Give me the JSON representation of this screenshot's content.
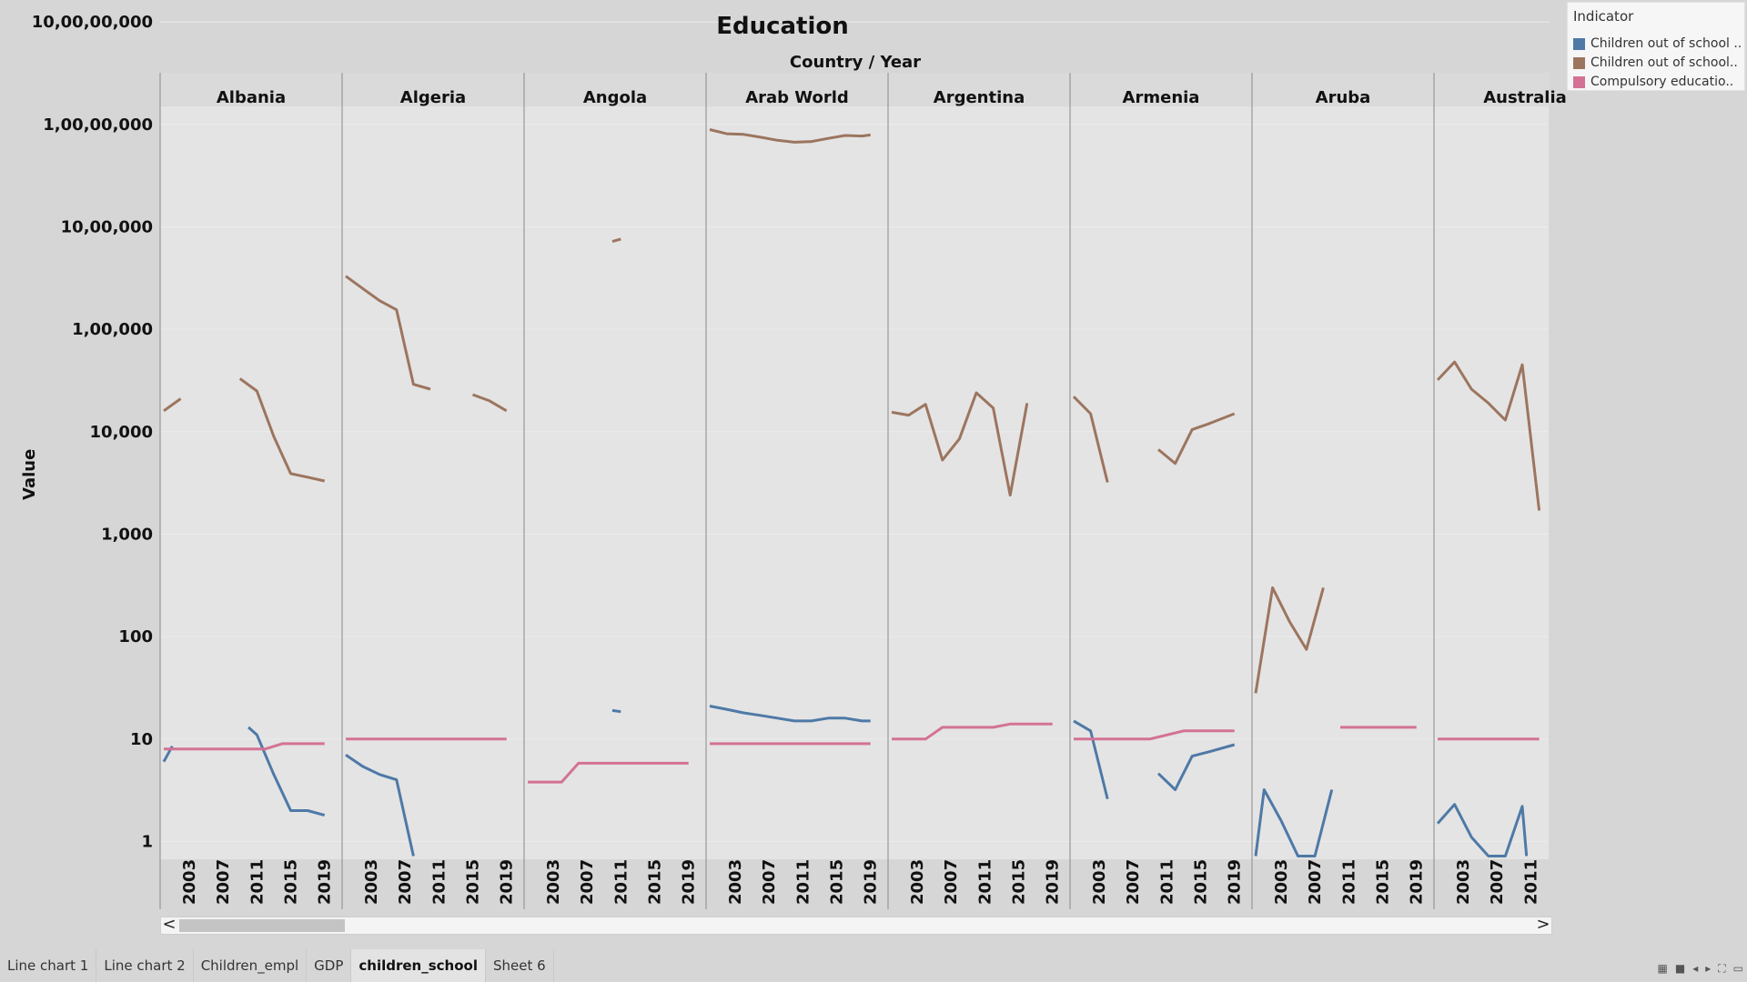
{
  "title": "Education",
  "subtitle": "Country / Year",
  "y_axis_label": "Value",
  "legend": {
    "title": "Indicator",
    "items": [
      {
        "label": "Children out of school ..",
        "color": "#4e79a7"
      },
      {
        "label": "Children out of school..",
        "color": "#9c755f"
      },
      {
        "label": "Compulsory educatio..",
        "color": "#d37295"
      }
    ]
  },
  "tabs": [
    "Line chart 1",
    "Line chart 2",
    "Children_empl",
    "GDP",
    "children_school",
    "Sheet 6"
  ],
  "active_tab": "children_school",
  "scroll": {
    "left": "<",
    "right": ">"
  },
  "chart_data": {
    "type": "line",
    "title": "Education",
    "xlabel": "Country / Year",
    "ylabel": "Value",
    "y_scale": "log",
    "ylim": [
      0.67,
      15000000
    ],
    "y_ticks": [
      1,
      10,
      100,
      1000,
      10000,
      100000,
      1000000,
      10000000,
      100000000
    ],
    "y_tick_labels": [
      "1",
      "10",
      "100",
      "1,000",
      "10,000",
      "1,00,000",
      "10,00,000",
      "1,00,00,000",
      "10,00,00,000"
    ],
    "x_ticks": [
      2003,
      2007,
      2011,
      2015,
      2019
    ],
    "x_range": [
      2000,
      2020
    ],
    "panels": [
      {
        "country": "Albania",
        "series": [
          {
            "indicator": 0,
            "segments": [
              [
                [
                  2000,
                  6
                ],
                [
                  2001,
                  8.5
                ]
              ],
              [
                [
                  2010,
                  13
                ],
                [
                  2011,
                  11
                ],
                [
                  2013,
                  4.5
                ],
                [
                  2015,
                  2
                ],
                [
                  2017,
                  2
                ],
                [
                  2019,
                  1.8
                ]
              ]
            ]
          },
          {
            "indicator": 1,
            "segments": [
              [
                [
                  2000,
                  16000
                ],
                [
                  2002,
                  21000
                ]
              ],
              [
                [
                  2009,
                  33000
                ],
                [
                  2011,
                  25000
                ],
                [
                  2013,
                  9000
                ],
                [
                  2015,
                  3900
                ],
                [
                  2017,
                  3600
                ],
                [
                  2019,
                  3300
                ]
              ]
            ]
          },
          {
            "indicator": 2,
            "segments": [
              [
                [
                  2000,
                  8
                ],
                [
                  2002,
                  8
                ],
                [
                  2004,
                  8
                ],
                [
                  2006,
                  8
                ],
                [
                  2008,
                  8
                ],
                [
                  2010,
                  8
                ],
                [
                  2012,
                  8
                ],
                [
                  2014,
                  9
                ],
                [
                  2016,
                  9
                ],
                [
                  2019,
                  9
                ]
              ]
            ]
          }
        ]
      },
      {
        "country": "Algeria",
        "series": [
          {
            "indicator": 0,
            "segments": [
              [
                [
                  2000,
                  7
                ],
                [
                  2002,
                  5.4
                ],
                [
                  2004,
                  4.5
                ],
                [
                  2006,
                  4
                ],
                [
                  2008,
                  0.72
                ]
              ]
            ]
          },
          {
            "indicator": 1,
            "segments": [
              [
                [
                  2000,
                  330000
                ],
                [
                  2002,
                  250000
                ],
                [
                  2004,
                  190000
                ],
                [
                  2006,
                  155000
                ],
                [
                  2008,
                  29000
                ],
                [
                  2010,
                  26000
                ]
              ],
              [
                [
                  2015,
                  23000
                ],
                [
                  2017,
                  20000
                ],
                [
                  2019,
                  16000
                ]
              ]
            ]
          },
          {
            "indicator": 2,
            "segments": [
              [
                [
                  2000,
                  10
                ],
                [
                  2019,
                  10
                ]
              ]
            ]
          }
        ]
      },
      {
        "country": "Angola",
        "series": [
          {
            "indicator": 0,
            "segments": [
              [
                [
                  2010,
                  19
                ],
                [
                  2011,
                  18.5
                ]
              ]
            ]
          },
          {
            "indicator": 1,
            "segments": [
              [
                [
                  2010,
                  720000
                ],
                [
                  2011,
                  760000
                ]
              ]
            ]
          },
          {
            "indicator": 2,
            "segments": [
              [
                [
                  2000,
                  3.8
                ],
                [
                  2004,
                  3.8
                ],
                [
                  2006,
                  5.8
                ],
                [
                  2019,
                  5.8
                ]
              ]
            ]
          }
        ]
      },
      {
        "country": "Arab World",
        "series": [
          {
            "indicator": 0,
            "segments": [
              [
                [
                  2000,
                  21
                ],
                [
                  2002,
                  19.5
                ],
                [
                  2004,
                  18
                ],
                [
                  2006,
                  17
                ],
                [
                  2008,
                  16
                ],
                [
                  2010,
                  15
                ],
                [
                  2012,
                  15
                ],
                [
                  2014,
                  16
                ],
                [
                  2016,
                  16
                ],
                [
                  2018,
                  15
                ],
                [
                  2019,
                  15
                ]
              ]
            ]
          },
          {
            "indicator": 1,
            "segments": [
              [
                [
                  2000,
                  8900000
                ],
                [
                  2002,
                  8100000
                ],
                [
                  2004,
                  8000000
                ],
                [
                  2006,
                  7500000
                ],
                [
                  2008,
                  7000000
                ],
                [
                  2010,
                  6700000
                ],
                [
                  2012,
                  6800000
                ],
                [
                  2014,
                  7300000
                ],
                [
                  2016,
                  7800000
                ],
                [
                  2018,
                  7700000
                ],
                [
                  2019,
                  7900000
                ]
              ]
            ]
          },
          {
            "indicator": 2,
            "segments": [
              [
                [
                  2000,
                  9
                ],
                [
                  2019,
                  9
                ]
              ]
            ]
          }
        ]
      },
      {
        "country": "Argentina",
        "series": [
          {
            "indicator": 1,
            "segments": [
              [
                [
                  2000,
                  15500
                ],
                [
                  2002,
                  14500
                ],
                [
                  2004,
                  18500
                ],
                [
                  2006,
                  5300
                ],
                [
                  2008,
                  8500
                ],
                [
                  2010,
                  24000
                ],
                [
                  2012,
                  17000
                ],
                [
                  2014,
                  2400
                ],
                [
                  2016,
                  19000
                ]
              ]
            ]
          },
          {
            "indicator": 2,
            "segments": [
              [
                [
                  2000,
                  10
                ],
                [
                  2004,
                  10
                ],
                [
                  2006,
                  13
                ],
                [
                  2012,
                  13
                ],
                [
                  2014,
                  14
                ],
                [
                  2019,
                  14
                ]
              ]
            ]
          }
        ]
      },
      {
        "country": "Armenia",
        "series": [
          {
            "indicator": 0,
            "segments": [
              [
                [
                  2000,
                  15
                ],
                [
                  2002,
                  12
                ],
                [
                  2004,
                  2.6
                ]
              ],
              [
                [
                  2010,
                  4.6
                ],
                [
                  2012,
                  3.2
                ],
                [
                  2014,
                  6.8
                ],
                [
                  2016,
                  7.5
                ],
                [
                  2019,
                  8.8
                ]
              ]
            ]
          },
          {
            "indicator": 1,
            "segments": [
              [
                [
                  2000,
                  22000
                ],
                [
                  2002,
                  15000
                ],
                [
                  2004,
                  3200
                ]
              ],
              [
                [
                  2010,
                  6700
                ],
                [
                  2012,
                  4900
                ],
                [
                  2014,
                  10500
                ],
                [
                  2016,
                  12000
                ],
                [
                  2019,
                  15000
                ]
              ]
            ]
          },
          {
            "indicator": 2,
            "segments": [
              [
                [
                  2000,
                  10
                ],
                [
                  2009,
                  10
                ],
                [
                  2013,
                  12
                ],
                [
                  2019,
                  12
                ]
              ]
            ]
          }
        ]
      },
      {
        "country": "Aruba",
        "series": [
          {
            "indicator": 0,
            "segments": [
              [
                [
                  2000,
                  0.72
                ],
                [
                  2001,
                  3.2
                ],
                [
                  2003,
                  1.6
                ],
                [
                  2005,
                  0.72
                ],
                [
                  2007,
                  0.72
                ],
                [
                  2009,
                  3.2
                ]
              ]
            ]
          },
          {
            "indicator": 1,
            "segments": [
              [
                [
                  2000,
                  28
                ],
                [
                  2002,
                  300
                ],
                [
                  2004,
                  140
                ],
                [
                  2006,
                  75
                ],
                [
                  2008,
                  300
                ]
              ]
            ]
          },
          {
            "indicator": 2,
            "segments": [
              [
                [
                  2010,
                  13
                ],
                [
                  2019,
                  13
                ]
              ]
            ]
          }
        ]
      },
      {
        "country": "Australia",
        "series": [
          {
            "indicator": 0,
            "segments": [
              [
                [
                  2000,
                  1.5
                ],
                [
                  2002,
                  2.3
                ],
                [
                  2004,
                  1.1
                ],
                [
                  2006,
                  0.72
                ],
                [
                  2008,
                  0.72
                ],
                [
                  2010,
                  2.2
                ],
                [
                  2010.5,
                  0.72
                ]
              ]
            ]
          },
          {
            "indicator": 1,
            "segments": [
              [
                [
                  2000,
                  32000
                ],
                [
                  2002,
                  48000
                ],
                [
                  2004,
                  26000
                ],
                [
                  2006,
                  19000
                ],
                [
                  2008,
                  13000
                ],
                [
                  2010,
                  45000
                ],
                [
                  2012,
                  1700
                ]
              ]
            ]
          },
          {
            "indicator": 2,
            "segments": [
              [
                [
                  2000,
                  10
                ],
                [
                  2012,
                  10
                ]
              ]
            ]
          }
        ]
      }
    ]
  }
}
